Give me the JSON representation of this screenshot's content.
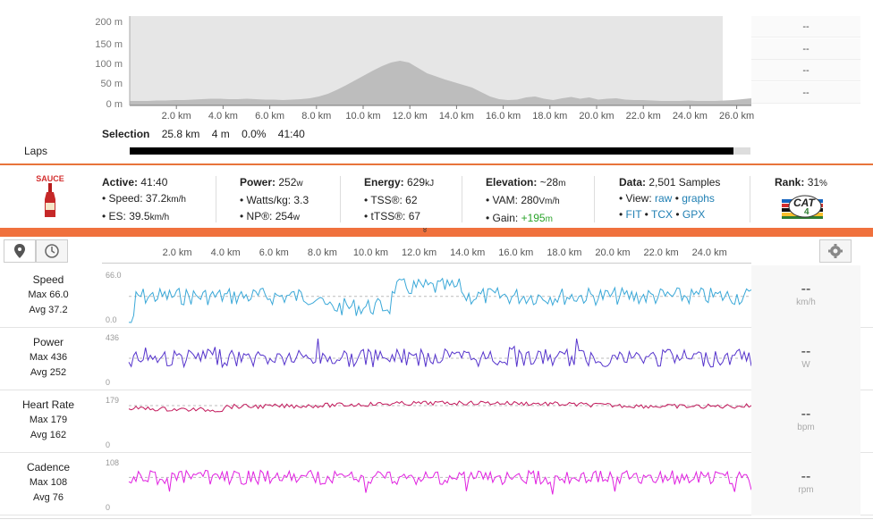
{
  "elevation": {
    "y_labels": [
      "200 m",
      "150 m",
      "100 m",
      "50 m",
      "0 m"
    ],
    "x_labels": [
      "2.0 km",
      "4.0 km",
      "6.0 km",
      "8.0 km",
      "10.0 km",
      "12.0 km",
      "14.0 km",
      "16.0 km",
      "18.0 km",
      "20.0 km",
      "22.0 km",
      "24.0 km",
      "26.0 km"
    ],
    "profile_m": [
      10,
      10,
      10,
      11,
      11,
      12,
      12,
      13,
      14,
      15,
      15,
      14,
      14,
      15,
      14,
      13,
      13,
      12,
      13,
      14,
      16,
      20,
      26,
      35,
      45,
      56,
      67,
      78,
      88,
      96,
      100,
      96,
      84,
      72,
      65,
      58,
      52,
      46,
      40,
      30,
      20,
      14,
      12,
      13,
      18,
      20,
      15,
      12,
      16,
      19,
      15,
      18,
      13,
      15,
      16,
      13,
      12,
      12,
      11,
      10,
      10,
      10,
      11,
      10,
      10,
      10,
      11,
      12,
      14,
      16
    ],
    "color": "#bdbdbd",
    "side_values": [
      "--",
      "--",
      "--",
      "--"
    ]
  },
  "selection": {
    "label": "Selection",
    "distance": "25.8 km",
    "elevation": "4 m",
    "grade": "0.0%",
    "time": "41:40"
  },
  "laps": {
    "label": "Laps"
  },
  "sauce": {
    "logo_text": "SAUCE"
  },
  "stats": {
    "active": {
      "label": "Active:",
      "value": "41:40",
      "speed": "• Speed: 37.2",
      "speed_unit": "km/h",
      "es": "• ES: 39.5",
      "es_unit": "km/h"
    },
    "power": {
      "label": "Power:",
      "value": "252",
      "unit": "w",
      "wkg": "• Watts/kg: 3.3",
      "np": "• NP®: 254",
      "np_unit": "w"
    },
    "energy": {
      "label": "Energy:",
      "value": "629",
      "unit": "kJ",
      "tss": "• TSS®: 62",
      "ttss": "• tTSS®: 67"
    },
    "elevation": {
      "label": "Elevation:",
      "value": "~28",
      "unit": "m",
      "vam": "• VAM: 280",
      "vam_unit": "Vm/h",
      "gain_label": "• Gain:",
      "gain": "+195",
      "gain_unit": "m"
    },
    "data": {
      "label": "Data:",
      "value": "2,501 Samples",
      "view_label": "• View:",
      "raw": "raw",
      "graphs": "graphs",
      "fit": "FIT",
      "tcx": "TCX",
      "gpx": "GPX"
    },
    "rank": {
      "label": "Rank:",
      "value": "31",
      "unit": "%",
      "badge": "CAT",
      "badge_num": "4"
    }
  },
  "collapse_icon": "»",
  "graphs": {
    "x_labels": [
      "2.0 km",
      "4.0 km",
      "6.0 km",
      "8.0 km",
      "10.0 km",
      "12.0 km",
      "14.0 km",
      "16.0 km",
      "18.0 km",
      "20.0 km",
      "22.0 km",
      "24.0 km"
    ],
    "rows": [
      {
        "name": "Speed",
        "max": "Max 66.0",
        "avg": "Avg 37.2",
        "top": "66.0",
        "bottom": "0.0",
        "unit": "km/h",
        "dash": "--",
        "color": "#3aa8d8",
        "max_val": 66,
        "avg_val": 37.2
      },
      {
        "name": "Power",
        "max": "Max 436",
        "avg": "Avg 252",
        "top": "436",
        "bottom": "0",
        "unit": "W",
        "dash": "--",
        "color": "#5533cc",
        "max_val": 436,
        "avg_val": 252
      },
      {
        "name": "Heart Rate",
        "max": "Max 179",
        "avg": "Avg 162",
        "top": "179",
        "bottom": "0",
        "unit": "bpm",
        "dash": "--",
        "color": "#c2185b",
        "max_val": 179,
        "avg_val": 162
      },
      {
        "name": "Cadence",
        "max": "Max 108",
        "avg": "Avg 76",
        "top": "108",
        "bottom": "0",
        "unit": "rpm",
        "dash": "--",
        "color": "#e020e0",
        "max_val": 108,
        "avg_val": 76
      }
    ]
  }
}
